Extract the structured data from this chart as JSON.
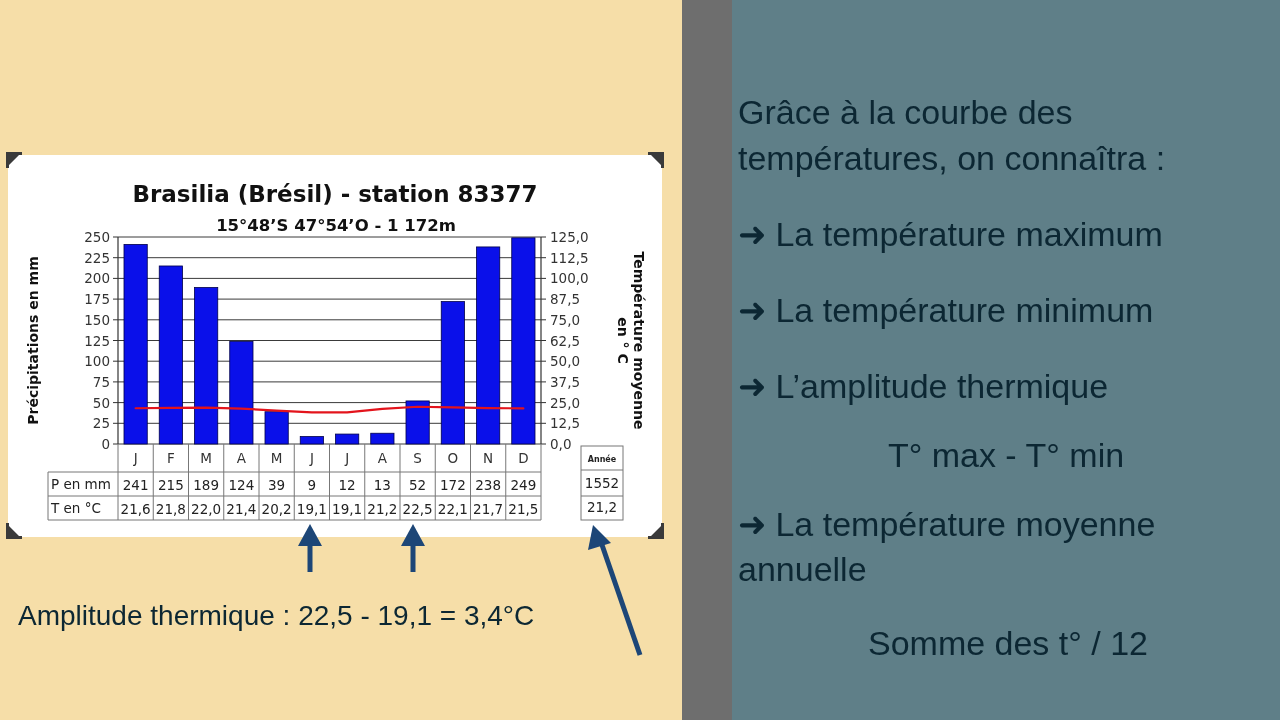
{
  "chart_data": {
    "type": "bar",
    "title": "Brasilia (Brésil) - station 83377",
    "subtitle": "15°48’S 47°54’O - 1 172m",
    "ylabel": "Précipitations en mm",
    "y2label": "Température moyenne en ° C",
    "categories": [
      "J",
      "F",
      "M",
      "A",
      "M",
      "J",
      "J",
      "A",
      "S",
      "O",
      "N",
      "D"
    ],
    "series": [
      {
        "color": "#0a10ea",
        "values": [
          241,
          215,
          189,
          124,
          39,
          9,
          12,
          13,
          52,
          172,
          238,
          249
        ],
        "value_labels": [
          "241",
          "215",
          "189",
          "124",
          "39",
          "9",
          "12",
          "13",
          "52",
          "172",
          "238",
          "249"
        ]
      },
      {
        "type": "line",
        "axis": "y2",
        "color": "#e3141c",
        "values": [
          21.6,
          21.8,
          22.0,
          21.4,
          20.2,
          19.1,
          19.1,
          21.2,
          22.5,
          22.1,
          21.7,
          21.5
        ],
        "value_labels": [
          "21,6",
          "21,8",
          "22,0",
          "21,4",
          "20,2",
          "19,1",
          "19,1",
          "21,2",
          "22,5",
          "22,1",
          "21,7",
          "21,5"
        ]
      }
    ],
    "ylim": [
      0,
      250
    ],
    "yticks": [
      0,
      25,
      50,
      75,
      100,
      125,
      150,
      175,
      200,
      225,
      250
    ],
    "y2lim": [
      0,
      125
    ],
    "y2ticks": [
      {
        "value": 0,
        "label": "0,0"
      },
      {
        "value": 12.5,
        "label": "12,5"
      },
      {
        "value": 25,
        "label": "25,0"
      },
      {
        "value": 37.5,
        "label": "37,5"
      },
      {
        "value": 50,
        "label": "50,0"
      },
      {
        "value": 62.5,
        "label": "62,5"
      },
      {
        "value": 75,
        "label": "75,0"
      },
      {
        "value": 87.5,
        "label": "87,5"
      },
      {
        "value": 100,
        "label": "100,0"
      },
      {
        "value": 112.5,
        "label": "112,5"
      },
      {
        "value": 125,
        "label": "125,0"
      }
    ],
    "grid": "y",
    "annotations": [
      "P en mm",
      "T en °C",
      "Année",
      "1552",
      "21,2",
      "Amplitude thermique : 22,5 - 19,1 = 3,4°C",
      "Grâce à la courbe des températures, on connaîtra :",
      "➜ La température maximum",
      "➜ La température minimum",
      "➜ L’amplitude thermique",
      "T° max - T° min",
      "➜ La température moyenne annuelle",
      "Somme des t° / 12"
    ]
  }
}
